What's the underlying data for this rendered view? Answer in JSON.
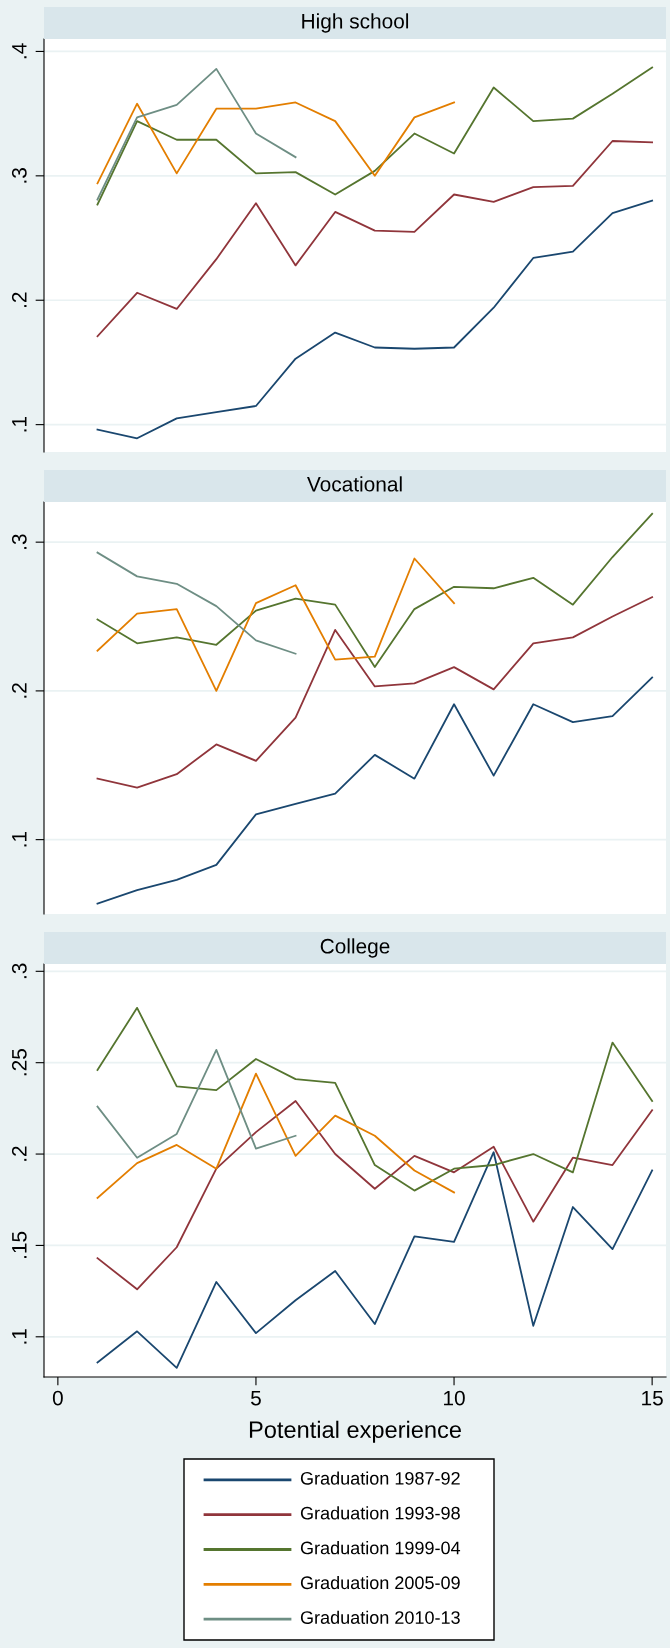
{
  "chart_data": [
    {
      "type": "line",
      "title": "High school",
      "xlim": [
        -0.35,
        15.35
      ],
      "ylim": [
        0.078,
        0.41
      ],
      "yticks": [
        {
          "value": 0.1,
          "label": ".1"
        },
        {
          "value": 0.2,
          "label": ".2"
        },
        {
          "value": 0.3,
          "label": ".3"
        },
        {
          "value": 0.4,
          "label": ".4"
        }
      ],
      "grid": "y",
      "tick_labels": "y",
      "series": [
        {
          "color": "#1a476f",
          "x": [
            1,
            2,
            3,
            4,
            5,
            6,
            7,
            8,
            9,
            10,
            11,
            12,
            13,
            14,
            15
          ],
          "values": [
            0.096,
            0.089,
            0.105,
            0.11,
            0.115,
            0.153,
            0.174,
            0.162,
            0.161,
            0.162,
            0.194,
            0.234,
            0.239,
            0.27,
            0.28
          ]
        },
        {
          "color": "#90353b",
          "x": [
            1,
            2,
            3,
            4,
            5,
            6,
            7,
            8,
            9,
            10,
            11,
            12,
            13,
            14,
            15
          ],
          "values": [
            0.171,
            0.206,
            0.193,
            0.233,
            0.278,
            0.228,
            0.271,
            0.256,
            0.255,
            0.285,
            0.279,
            0.291,
            0.292,
            0.328,
            0.327
          ]
        },
        {
          "color": "#55752f",
          "x": [
            1,
            2,
            3,
            4,
            5,
            6,
            7,
            8,
            9,
            10,
            11,
            12,
            13,
            14,
            15
          ],
          "values": [
            0.277,
            0.344,
            0.329,
            0.329,
            0.302,
            0.303,
            0.285,
            0.304,
            0.334,
            0.318,
            0.371,
            0.344,
            0.346,
            0.366,
            0.387
          ]
        },
        {
          "color": "#e37e00",
          "x": [
            1,
            2,
            3,
            4,
            5,
            6,
            7,
            8,
            9,
            10
          ],
          "values": [
            0.294,
            0.358,
            0.302,
            0.354,
            0.354,
            0.359,
            0.344,
            0.3,
            0.347,
            0.359
          ]
        },
        {
          "color": "#6e8e84",
          "x": [
            1,
            2,
            3,
            4,
            5,
            6
          ],
          "values": [
            0.281,
            0.347,
            0.357,
            0.386,
            0.334,
            0.315
          ]
        }
      ]
    },
    {
      "type": "line",
      "title": "Vocational",
      "xlim": [
        -0.35,
        15.35
      ],
      "ylim": [
        0.05,
        0.327
      ],
      "yticks": [
        {
          "value": 0.1,
          "label": ".1"
        },
        {
          "value": 0.2,
          "label": ".2"
        },
        {
          "value": 0.3,
          "label": ".3"
        }
      ],
      "grid": "y",
      "tick_labels": "y",
      "series": [
        {
          "color": "#1a476f",
          "x": [
            1,
            2,
            3,
            4,
            5,
            6,
            7,
            8,
            9,
            10,
            11,
            12,
            13,
            14,
            15
          ],
          "values": [
            0.057,
            0.066,
            0.073,
            0.083,
            0.117,
            0.124,
            0.131,
            0.157,
            0.141,
            0.191,
            0.143,
            0.191,
            0.179,
            0.183,
            0.209
          ]
        },
        {
          "color": "#90353b",
          "x": [
            1,
            2,
            3,
            4,
            5,
            6,
            7,
            8,
            9,
            10,
            11,
            12,
            13,
            14,
            15
          ],
          "values": [
            0.141,
            0.135,
            0.144,
            0.164,
            0.153,
            0.182,
            0.241,
            0.203,
            0.205,
            0.216,
            0.201,
            0.232,
            0.236,
            0.25,
            0.263
          ]
        },
        {
          "color": "#55752f",
          "x": [
            1,
            2,
            3,
            4,
            5,
            6,
            7,
            8,
            9,
            10,
            11,
            12,
            13,
            14,
            15
          ],
          "values": [
            0.248,
            0.232,
            0.236,
            0.231,
            0.254,
            0.262,
            0.258,
            0.216,
            0.255,
            0.27,
            0.269,
            0.276,
            0.258,
            0.29,
            0.319
          ]
        },
        {
          "color": "#e37e00",
          "x": [
            1,
            2,
            3,
            4,
            5,
            6,
            7,
            8,
            9,
            10
          ],
          "values": [
            0.227,
            0.252,
            0.255,
            0.2,
            0.259,
            0.271,
            0.221,
            0.223,
            0.289,
            0.259
          ]
        },
        {
          "color": "#6e8e84",
          "x": [
            1,
            2,
            3,
            4,
            5,
            6
          ],
          "values": [
            0.293,
            0.277,
            0.272,
            0.257,
            0.234,
            0.225
          ]
        }
      ]
    },
    {
      "type": "line",
      "title": "College",
      "xlabel": "Potential experience",
      "xlim": [
        -0.35,
        15.35
      ],
      "xticks": [
        0,
        5,
        10,
        15
      ],
      "ylim": [
        0.078,
        0.304
      ],
      "yticks": [
        {
          "value": 0.1,
          "label": ".1"
        },
        {
          "value": 0.15,
          "label": ".15"
        },
        {
          "value": 0.2,
          "label": ".2"
        },
        {
          "value": 0.25,
          "label": ".25"
        },
        {
          "value": 0.3,
          "label": ".3"
        }
      ],
      "grid": "y",
      "legend": "bottom",
      "series": [
        {
          "name": "Graduation 1987-92",
          "color": "#1a476f",
          "x": [
            1,
            2,
            3,
            4,
            5,
            6,
            7,
            8,
            9,
            10,
            11,
            12,
            13,
            14,
            15
          ],
          "values": [
            0.086,
            0.103,
            0.083,
            0.13,
            0.102,
            0.12,
            0.136,
            0.107,
            0.155,
            0.152,
            0.201,
            0.106,
            0.171,
            0.148,
            0.191
          ]
        },
        {
          "name": "Graduation 1993-98",
          "color": "#90353b",
          "x": [
            1,
            2,
            3,
            4,
            5,
            6,
            7,
            8,
            9,
            10,
            11,
            12,
            13,
            14,
            15
          ],
          "values": [
            0.143,
            0.126,
            0.149,
            0.192,
            0.212,
            0.229,
            0.2,
            0.181,
            0.199,
            0.19,
            0.204,
            0.163,
            0.198,
            0.194,
            0.224
          ]
        },
        {
          "name": "Graduation 1999-04",
          "color": "#55752f",
          "x": [
            1,
            2,
            3,
            4,
            5,
            6,
            7,
            8,
            9,
            10,
            11,
            12,
            13,
            14,
            15
          ],
          "values": [
            0.246,
            0.28,
            0.237,
            0.235,
            0.252,
            0.241,
            0.239,
            0.194,
            0.18,
            0.192,
            0.194,
            0.2,
            0.19,
            0.261,
            0.229
          ]
        },
        {
          "name": "Graduation 2005-09",
          "color": "#e37e00",
          "x": [
            1,
            2,
            3,
            4,
            5,
            6,
            7,
            8,
            9,
            10
          ],
          "values": [
            0.176,
            0.195,
            0.205,
            0.192,
            0.244,
            0.199,
            0.221,
            0.21,
            0.191,
            0.179
          ]
        },
        {
          "name": "Graduation 2010-13",
          "color": "#6e8e84",
          "x": [
            1,
            2,
            3,
            4,
            5,
            6
          ],
          "values": [
            0.226,
            0.198,
            0.211,
            0.257,
            0.203,
            0.21
          ]
        }
      ]
    }
  ]
}
